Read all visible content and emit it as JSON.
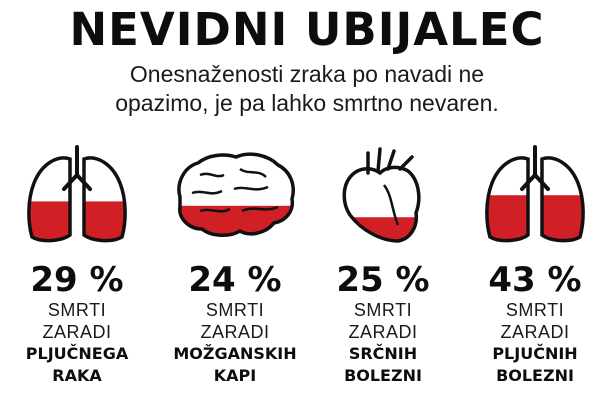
{
  "header": {
    "title": "NEVIDNI UBIJALEC",
    "subtitle_line1": "Onesnaženosti zraka po navadi ne",
    "subtitle_line2": "opazimo, je pa lahko smrtno nevaren."
  },
  "colors": {
    "fill": "#d11f26",
    "outline": "#111111",
    "text": "#111111"
  },
  "stats": [
    {
      "icon": "lungs-icon",
      "fill_fraction": 0.45,
      "percent": "29 %",
      "line1": "SMRTI",
      "line2": "ZARADI",
      "line3": "PLJUČNEGA",
      "line4": "RAKA"
    },
    {
      "icon": "brain-icon",
      "fill_fraction": 0.4,
      "percent": "24 %",
      "line1": "SMRTI",
      "line2": "ZARADI",
      "line3": "MOŽGANSKIH",
      "line4": "KAPI"
    },
    {
      "icon": "heart-icon",
      "fill_fraction": 0.27,
      "percent": "25 %",
      "line1": "SMRTI",
      "line2": "ZARADI",
      "line3": "SRČNIH",
      "line4": "BOLEZNI"
    },
    {
      "icon": "lungs-icon",
      "fill_fraction": 0.52,
      "percent": "43 %",
      "line1": "SMRTI",
      "line2": "ZARADI",
      "line3": "PLJUČNIH",
      "line4": "BOLEZNI"
    }
  ]
}
